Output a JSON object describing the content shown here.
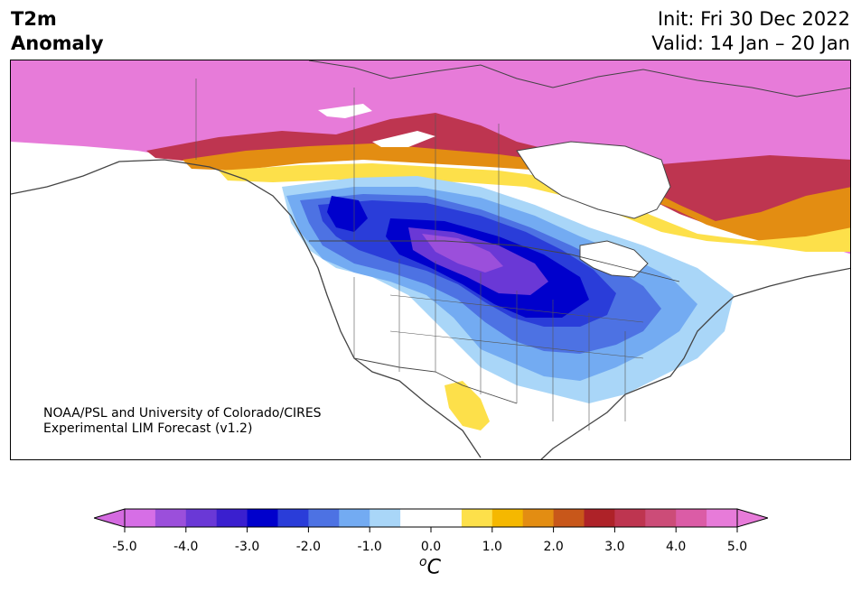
{
  "header": {
    "title_line1": "T2m",
    "title_line2": "Anomaly",
    "init": "Init: Fri 30 Dec 2022",
    "valid": "Valid: 14 Jan – 20 Jan"
  },
  "map": {
    "region": "North America",
    "credit_line1": "NOAA/PSL and University of Colorado/CIRES",
    "credit_line2": "Experimental LIM Forecast (v1.2)"
  },
  "colorbar": {
    "unit_base": "C",
    "unit_sup": "o",
    "tick_labels": [
      "-5.0",
      "-4.0",
      "-3.0",
      "-2.0",
      "-1.0",
      "0.0",
      "1.0",
      "2.0",
      "3.0",
      "4.0",
      "5.0"
    ],
    "colors": [
      "#d66ee6",
      "#9b4fdb",
      "#6a38d6",
      "#3a1fcf",
      "#0000cc",
      "#2a3dd9",
      "#4d72e3",
      "#73abf2",
      "#a9d6f8",
      "#ffffff",
      "#ffffff",
      "#fde04a",
      "#f5b800",
      "#e38d12",
      "#c8571a",
      "#ae2228",
      "#be3550",
      "#cc4c78",
      "#db5ca6",
      "#e77bd9"
    ],
    "extend_low_color": "#d46ae0",
    "extend_high_color": "#e77bd9"
  }
}
